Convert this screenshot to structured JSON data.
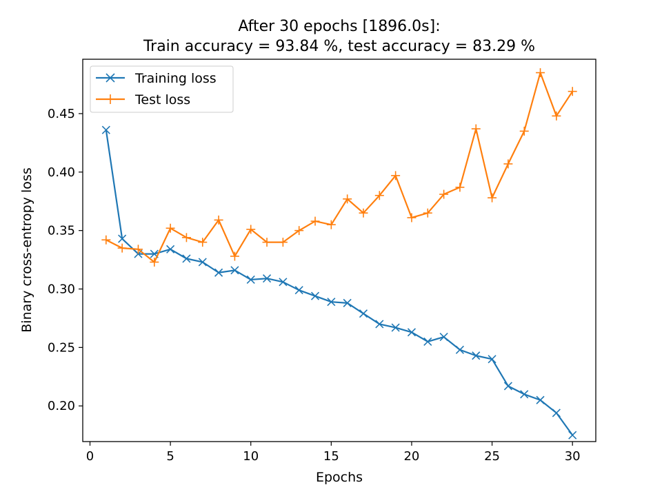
{
  "chart_data": {
    "type": "line",
    "title": [
      "After 30 epochs [1896.0s]:",
      "Train accuracy = 93.84 %, test accuracy = 83.29 %"
    ],
    "xlabel": "Epochs",
    "ylabel": "Binary cross-entropy loss",
    "xlim": [
      -0.45,
      31.45
    ],
    "ylim": [
      0.1695,
      0.4965
    ],
    "xticks": [
      0,
      5,
      10,
      15,
      20,
      25,
      30
    ],
    "yticks": [
      0.2,
      0.25,
      0.3,
      0.35,
      0.4,
      0.45
    ],
    "ytick_labels": [
      "0.20",
      "0.25",
      "0.30",
      "0.35",
      "0.40",
      "0.45"
    ],
    "grid": false,
    "legend_position": "top-left",
    "x": [
      1,
      2,
      3,
      4,
      5,
      6,
      7,
      8,
      9,
      10,
      11,
      12,
      13,
      14,
      15,
      16,
      17,
      18,
      19,
      20,
      21,
      22,
      23,
      24,
      25,
      26,
      27,
      28,
      29,
      30
    ],
    "series": [
      {
        "name": "Training loss",
        "color": "#1f77b4",
        "marker": "x",
        "values": [
          0.436,
          0.343,
          0.33,
          0.33,
          0.334,
          0.326,
          0.323,
          0.314,
          0.316,
          0.308,
          0.309,
          0.306,
          0.299,
          0.294,
          0.289,
          0.288,
          0.279,
          0.27,
          0.267,
          0.263,
          0.255,
          0.259,
          0.248,
          0.243,
          0.24,
          0.217,
          0.21,
          0.205,
          0.194,
          0.175
        ]
      },
      {
        "name": "Test loss",
        "color": "#ff7f0e",
        "marker": "+",
        "values": [
          0.342,
          0.335,
          0.334,
          0.323,
          0.352,
          0.344,
          0.34,
          0.359,
          0.328,
          0.351,
          0.34,
          0.34,
          0.35,
          0.358,
          0.355,
          0.377,
          0.365,
          0.38,
          0.397,
          0.361,
          0.365,
          0.381,
          0.387,
          0.437,
          0.378,
          0.407,
          0.435,
          0.485,
          0.448,
          0.469
        ]
      }
    ]
  }
}
